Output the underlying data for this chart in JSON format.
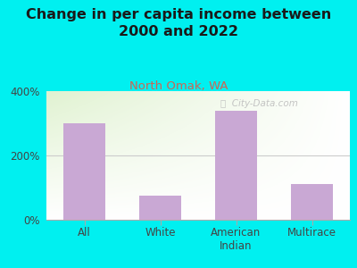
{
  "title": "Change in per capita income between\n2000 and 2022",
  "subtitle": "North Omak, WA",
  "categories": [
    "All",
    "White",
    "American\nIndian",
    "Multirace"
  ],
  "values": [
    300,
    75,
    340,
    110
  ],
  "bar_color": "#c9a8d4",
  "background_color": "#00f0f0",
  "plot_bg_colors": [
    "#e8f4e8",
    "#f8fdf0",
    "#ffffff"
  ],
  "ylim": [
    0,
    400
  ],
  "yticks": [
    0,
    200,
    400
  ],
  "ytick_labels": [
    "0%",
    "200%",
    "400%"
  ],
  "title_fontsize": 11.5,
  "subtitle_fontsize": 9.5,
  "subtitle_color": "#cc6655",
  "title_color": "#1a1a1a",
  "tick_color": "#444444",
  "watermark_text": "ⓘ  City-Data.com",
  "watermark_color": "#bbbbbb",
  "grid_color": "#cccccc"
}
